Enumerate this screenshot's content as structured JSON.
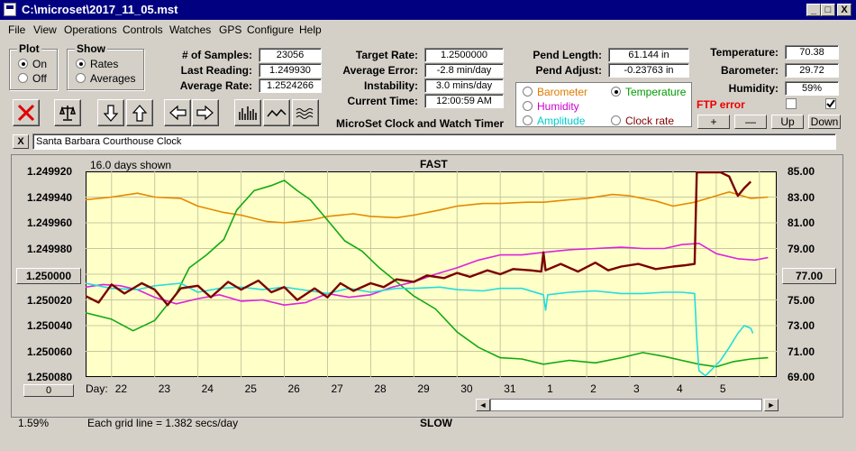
{
  "window": {
    "title": "C:\\microset\\2017_11_05.mst",
    "minimize": "_",
    "maximize": "□",
    "close": "X"
  },
  "menu": [
    "File",
    "View",
    "Operations",
    "Controls",
    "Watches",
    "GPS",
    "Configure",
    "Help"
  ],
  "plot_group": {
    "title": "Plot",
    "options": [
      "On",
      "Off"
    ],
    "selected": "On"
  },
  "show_group": {
    "title": "Show",
    "options": [
      "Rates",
      "Averages"
    ],
    "selected": "Rates"
  },
  "stats": {
    "samples_label": "# of Samples:",
    "samples": "23056",
    "last_reading_label": "Last Reading:",
    "last_reading": "1.249930",
    "average_rate_label": "Average Rate:",
    "average_rate": "1.2524266"
  },
  "rates": {
    "target_rate_label": "Target Rate:",
    "target_rate": "1.2500000",
    "average_error_label": "Average Error:",
    "average_error": "-2.8 min/day",
    "instability_label": "Instability:",
    "instability": "3.0 mins/day",
    "current_time_label": "Current Time:",
    "current_time": "12:00:59 AM"
  },
  "pendulum": {
    "length_label": "Pend Length:",
    "length": "61.144 in",
    "adjust_label": "Pend Adjust:",
    "adjust": "-0.23763 in"
  },
  "app_caption": "MicroSet Clock and Watch Timer",
  "overlay_options": [
    {
      "label": "Barometer",
      "color": "#e07b00"
    },
    {
      "label": "Temperature",
      "color": "#009900"
    },
    {
      "label": "Humidity",
      "color": "#cc00cc"
    },
    {
      "label": "Clock rate",
      "color": "#800000"
    },
    {
      "label": "Amplitude",
      "color": "#00cccc"
    }
  ],
  "overlay_selected": "Temperature",
  "environment": {
    "temperature_label": "Temperature:",
    "temperature": "70.38",
    "barometer_label": "Barometer:",
    "barometer": "29.72",
    "humidity_label": "Humidity:",
    "humidity": "59%"
  },
  "ftp_error": "FTP error",
  "adjust_buttons": [
    "+",
    "—",
    "Up",
    "Down"
  ],
  "clock_close": "X",
  "clock_name": "Santa Barbara Courthouse Clock",
  "chart_data": {
    "type": "line",
    "top_caption": "16.0 days shown",
    "top_label": "FAST",
    "bottom_label": "SLOW",
    "grid_note": "Each grid line = 1.382 secs/day",
    "left_axis": {
      "ticks": [
        "1.249920",
        "1.249940",
        "1.249960",
        "1.249980",
        "1.250000",
        "1.250020",
        "1.250040",
        "1.250060",
        "1.250080"
      ],
      "range": [
        1.24992,
        1.25008
      ],
      "inverted": true
    },
    "right_axis": {
      "ticks": [
        "85.00",
        "83.00",
        "81.00",
        "79.00",
        "77.00",
        "75.00",
        "73.00",
        "71.00",
        "69.00"
      ],
      "range": [
        69,
        85
      ]
    },
    "left_box": "1.250000",
    "right_box": "77.00",
    "bottom_left_box": "0",
    "percent": "1.59%",
    "x_prefix": "Day:",
    "x_ticks": [
      "22",
      "23",
      "24",
      "25",
      "26",
      "27",
      "28",
      "29",
      "30",
      "31",
      "1",
      "2",
      "3",
      "4",
      "5"
    ],
    "x_range": [
      21.4,
      37.4
    ],
    "series": [
      {
        "name": "Barometer",
        "color": "#e58a00",
        "values": [
          [
            21.4,
            82.8
          ],
          [
            22,
            83.0
          ],
          [
            22.6,
            83.3
          ],
          [
            23,
            83.0
          ],
          [
            23.6,
            82.9
          ],
          [
            24,
            82.3
          ],
          [
            24.6,
            81.8
          ],
          [
            25,
            81.6
          ],
          [
            25.6,
            81.1
          ],
          [
            26,
            81.0
          ],
          [
            26.6,
            81.2
          ],
          [
            27,
            81.5
          ],
          [
            27.6,
            81.7
          ],
          [
            28,
            81.5
          ],
          [
            28.6,
            81.4
          ],
          [
            29,
            81.6
          ],
          [
            29.6,
            82.0
          ],
          [
            30,
            82.3
          ],
          [
            30.6,
            82.5
          ],
          [
            31,
            82.5
          ],
          [
            31.6,
            82.6
          ],
          [
            32,
            82.6
          ],
          [
            32.6,
            82.8
          ],
          [
            33,
            82.9
          ],
          [
            33.6,
            83.2
          ],
          [
            34,
            83.1
          ],
          [
            34.6,
            82.7
          ],
          [
            35,
            82.3
          ],
          [
            35.5,
            82.6
          ],
          [
            35.9,
            83.0
          ],
          [
            36.3,
            83.4
          ],
          [
            36.8,
            82.9
          ],
          [
            37.2,
            83.0
          ]
        ]
      },
      {
        "name": "Temperature",
        "color": "#11aa11",
        "values": [
          [
            21.4,
            74.0
          ],
          [
            22,
            73.5
          ],
          [
            22.5,
            72.6
          ],
          [
            23,
            73.4
          ],
          [
            23.5,
            75.5
          ],
          [
            23.8,
            77.5
          ],
          [
            24.2,
            78.5
          ],
          [
            24.6,
            79.7
          ],
          [
            24.9,
            82.0
          ],
          [
            25.3,
            83.5
          ],
          [
            25.7,
            83.9
          ],
          [
            26,
            84.3
          ],
          [
            26.3,
            83.5
          ],
          [
            26.6,
            82.8
          ],
          [
            27,
            81.2
          ],
          [
            27.4,
            79.6
          ],
          [
            27.8,
            78.8
          ],
          [
            28.2,
            77.5
          ],
          [
            28.6,
            76.4
          ],
          [
            29,
            75.3
          ],
          [
            29.5,
            74.3
          ],
          [
            30,
            72.5
          ],
          [
            30.5,
            71.3
          ],
          [
            31,
            70.5
          ],
          [
            31.5,
            70.4
          ],
          [
            32,
            70.0
          ],
          [
            32.6,
            70.3
          ],
          [
            33.2,
            70.1
          ],
          [
            33.8,
            70.5
          ],
          [
            34.3,
            70.9
          ],
          [
            34.8,
            70.6
          ],
          [
            35.2,
            70.3
          ],
          [
            35.6,
            70.0
          ],
          [
            36.0,
            69.8
          ],
          [
            36.4,
            70.2
          ],
          [
            36.8,
            70.4
          ],
          [
            37.2,
            70.5
          ]
        ]
      },
      {
        "name": "Humidity",
        "color": "#dd22dd",
        "values": [
          [
            21.4,
            76.0
          ],
          [
            21.8,
            76.2
          ],
          [
            22.2,
            76.1
          ],
          [
            22.6,
            75.8
          ],
          [
            23,
            75.2
          ],
          [
            23.5,
            74.7
          ],
          [
            24,
            75.1
          ],
          [
            24.5,
            75.4
          ],
          [
            25,
            74.9
          ],
          [
            25.5,
            75.0
          ],
          [
            26,
            74.6
          ],
          [
            26.5,
            74.8
          ],
          [
            27,
            75.5
          ],
          [
            27.5,
            75.2
          ],
          [
            28,
            75.4
          ],
          [
            28.5,
            76.0
          ],
          [
            29,
            76.4
          ],
          [
            29.5,
            77.0
          ],
          [
            30,
            77.5
          ],
          [
            30.5,
            78.1
          ],
          [
            31,
            78.5
          ],
          [
            31.5,
            78.5
          ],
          [
            32,
            78.7
          ],
          [
            32.6,
            78.9
          ],
          [
            33.2,
            79.0
          ],
          [
            33.8,
            79.1
          ],
          [
            34.3,
            79.0
          ],
          [
            34.8,
            79.0
          ],
          [
            35.2,
            79.3
          ],
          [
            35.6,
            79.4
          ],
          [
            36.0,
            78.6
          ],
          [
            36.5,
            78.2
          ],
          [
            36.9,
            78.1
          ],
          [
            37.2,
            78.3
          ]
        ]
      },
      {
        "name": "Amplitude",
        "color": "#22dddd",
        "values": [
          [
            21.4,
            76.3
          ],
          [
            22,
            75.9
          ],
          [
            22.6,
            75.8
          ],
          [
            23,
            76.1
          ],
          [
            23.6,
            76.3
          ],
          [
            24,
            75.6
          ],
          [
            24.5,
            75.9
          ],
          [
            25,
            76.0
          ],
          [
            25.5,
            75.8
          ],
          [
            26,
            76.0
          ],
          [
            26.6,
            75.7
          ],
          [
            27,
            75.5
          ],
          [
            27.5,
            75.9
          ],
          [
            28,
            75.6
          ],
          [
            28.6,
            75.9
          ],
          [
            29,
            75.9
          ],
          [
            29.6,
            76.0
          ],
          [
            30,
            75.8
          ],
          [
            30.6,
            75.7
          ],
          [
            31,
            75.9
          ],
          [
            31.5,
            75.9
          ],
          [
            32,
            75.4
          ],
          [
            32.05,
            74.2
          ],
          [
            32.1,
            75.4
          ],
          [
            32.6,
            75.6
          ],
          [
            33.2,
            75.7
          ],
          [
            33.8,
            75.5
          ],
          [
            34.3,
            75.5
          ],
          [
            34.8,
            75.6
          ],
          [
            35.2,
            75.6
          ],
          [
            35.5,
            75.5
          ],
          [
            35.55,
            72.0
          ],
          [
            35.6,
            69.5
          ],
          [
            35.75,
            69.1
          ],
          [
            35.9,
            69.6
          ],
          [
            36.1,
            70.3
          ],
          [
            36.3,
            71.3
          ],
          [
            36.5,
            72.4
          ],
          [
            36.65,
            73.0
          ],
          [
            36.8,
            72.8
          ],
          [
            36.85,
            72.4
          ]
        ]
      },
      {
        "name": "Clock rate",
        "color": "#7a0000",
        "values": [
          [
            21.4,
            75.3
          ],
          [
            21.7,
            74.8
          ],
          [
            22.0,
            76.2
          ],
          [
            22.3,
            75.5
          ],
          [
            22.7,
            76.3
          ],
          [
            23.0,
            75.8
          ],
          [
            23.3,
            74.6
          ],
          [
            23.6,
            75.9
          ],
          [
            24.0,
            76.1
          ],
          [
            24.3,
            75.2
          ],
          [
            24.7,
            76.4
          ],
          [
            25.0,
            75.8
          ],
          [
            25.4,
            76.5
          ],
          [
            25.7,
            75.6
          ],
          [
            26.0,
            76.0
          ],
          [
            26.3,
            75.0
          ],
          [
            26.7,
            75.9
          ],
          [
            27.0,
            75.2
          ],
          [
            27.3,
            76.3
          ],
          [
            27.6,
            75.7
          ],
          [
            28.0,
            76.3
          ],
          [
            28.3,
            76.0
          ],
          [
            28.6,
            76.6
          ],
          [
            29.0,
            76.4
          ],
          [
            29.3,
            76.9
          ],
          [
            29.7,
            76.7
          ],
          [
            30.0,
            77.1
          ],
          [
            30.3,
            76.8
          ],
          [
            30.7,
            77.3
          ],
          [
            31.0,
            77.0
          ],
          [
            31.3,
            77.4
          ],
          [
            31.7,
            77.3
          ],
          [
            31.95,
            77.2
          ],
          [
            32.0,
            78.7
          ],
          [
            32.05,
            77.3
          ],
          [
            32.4,
            77.8
          ],
          [
            32.8,
            77.2
          ],
          [
            33.2,
            77.9
          ],
          [
            33.5,
            77.3
          ],
          [
            33.8,
            77.6
          ],
          [
            34.2,
            77.8
          ],
          [
            34.6,
            77.4
          ],
          [
            35.0,
            77.6
          ],
          [
            35.3,
            77.7
          ],
          [
            35.5,
            77.8
          ],
          [
            35.55,
            85.0
          ],
          [
            36.1,
            85.0
          ],
          [
            36.3,
            84.6
          ],
          [
            36.5,
            83.1
          ],
          [
            36.65,
            83.7
          ],
          [
            36.8,
            84.2
          ]
        ]
      }
    ]
  },
  "scrollbar": {
    "left_arrow": "◄",
    "right_arrow": "►"
  }
}
